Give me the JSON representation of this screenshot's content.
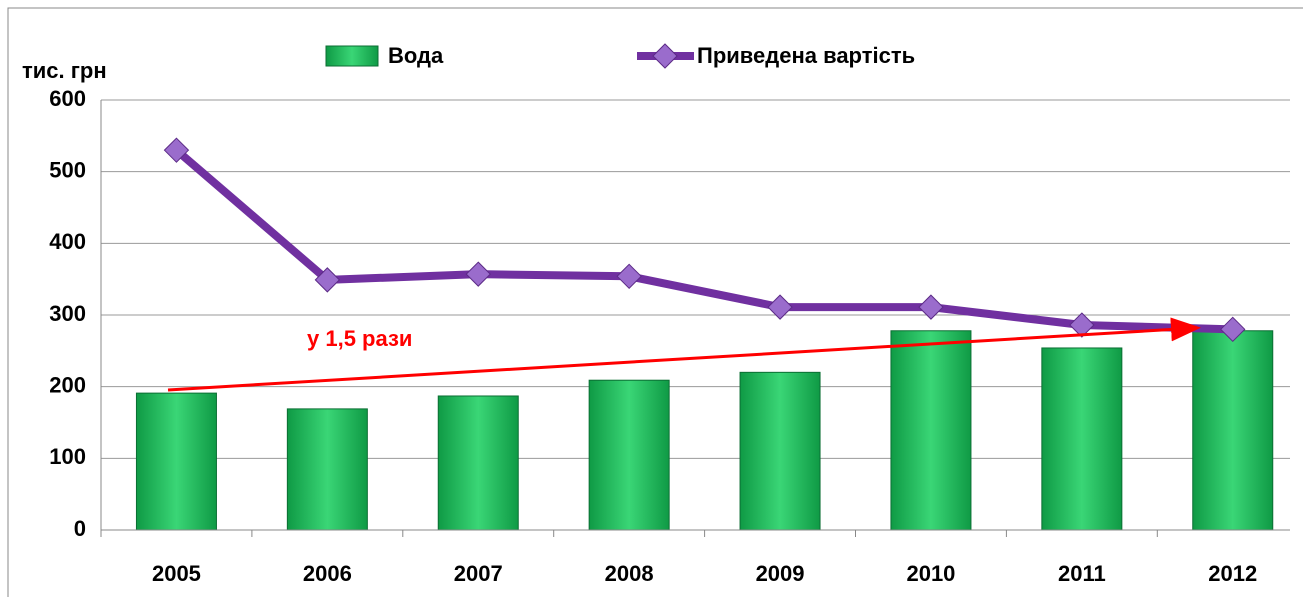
{
  "chart_data": {
    "type": "bar_line",
    "y_label": "тис. грн",
    "annotation": "у 1,5 рази",
    "categories": [
      "2005",
      "2006",
      "2007",
      "2008",
      "2009",
      "2010",
      "2011",
      "2012"
    ],
    "series": [
      {
        "name": "Вода",
        "type": "bar",
        "color": "#22b85a",
        "values": [
          191,
          169,
          187,
          209,
          220,
          278,
          254,
          278
        ]
      },
      {
        "name": "Приведена вартість",
        "type": "line",
        "color": "#7030a0",
        "values": [
          530,
          349,
          357,
          354,
          311,
          311,
          286,
          280
        ]
      }
    ],
    "ylim": [
      0,
      600
    ],
    "yticks": [
      0,
      100,
      200,
      300,
      400,
      500,
      600
    ],
    "grid": true
  }
}
